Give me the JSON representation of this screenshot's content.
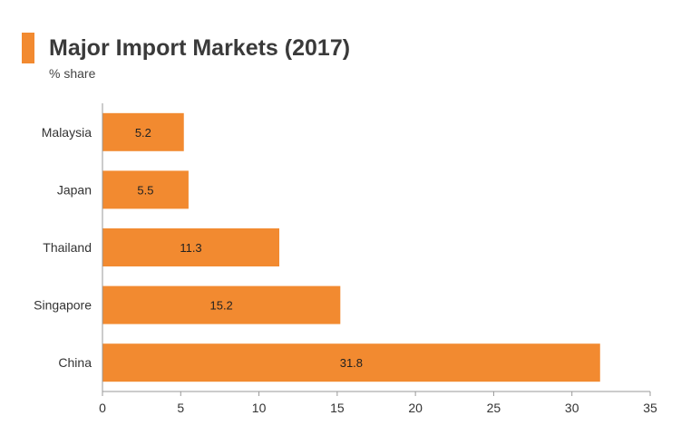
{
  "colors": {
    "accent": "#f28a30",
    "bar": "#f28a30",
    "title": "#3a3a3a",
    "text": "#333333",
    "axis": "#999999"
  },
  "chart_data": {
    "type": "bar",
    "orientation": "horizontal",
    "title": "Major Import Markets (2017)",
    "subtitle": "% share",
    "categories": [
      "Malaysia",
      "Japan",
      "Thailand",
      "Singapore",
      "China"
    ],
    "values": [
      5.2,
      5.5,
      11.3,
      15.2,
      31.8
    ],
    "data_labels": [
      "5.2",
      "5.5",
      "11.3",
      "15.2",
      "31.8"
    ],
    "x_ticks": [
      0,
      5,
      10,
      15,
      20,
      25,
      30,
      35
    ],
    "xlim": [
      0,
      35
    ],
    "xlabel": "",
    "ylabel": "",
    "grid": false,
    "legend": "none"
  }
}
